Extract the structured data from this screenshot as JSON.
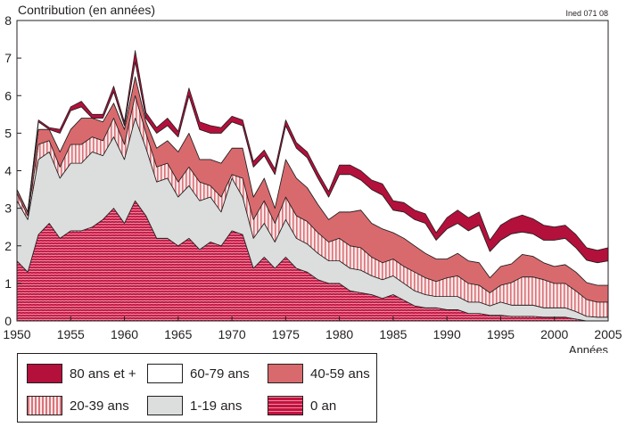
{
  "chart_data": {
    "type": "area",
    "stacked": true,
    "ylabel": "Contribution (en années)",
    "xlabel": "Années",
    "source_note": "Ined 071 08",
    "xlim": [
      1950,
      2005
    ],
    "ylim": [
      0,
      8
    ],
    "x_ticks": [
      1950,
      1955,
      1960,
      1965,
      1970,
      1975,
      1980,
      1985,
      1990,
      1995,
      2000,
      2005
    ],
    "y_ticks": [
      0,
      1,
      2,
      3,
      4,
      5,
      6,
      7,
      8
    ],
    "colors": {
      "0an": "#c4123f",
      "1-19": "#dcdddd",
      "20-39": "#d9737a",
      "40-59": "#d86a6e",
      "60-79": "#ffffff",
      "80plus": "#b4103c"
    },
    "x": [
      1950,
      1951,
      1952,
      1953,
      1954,
      1955,
      1956,
      1957,
      1958,
      1959,
      1960,
      1961,
      1962,
      1963,
      1964,
      1965,
      1966,
      1967,
      1968,
      1969,
      1970,
      1971,
      1972,
      1973,
      1974,
      1975,
      1976,
      1977,
      1978,
      1979,
      1980,
      1981,
      1982,
      1983,
      1984,
      1985,
      1986,
      1987,
      1988,
      1989,
      1990,
      1991,
      1992,
      1993,
      1994,
      1995,
      1996,
      1997,
      1998,
      1999,
      2000,
      2001,
      2002,
      2003,
      2004,
      2005
    ],
    "series": [
      {
        "name": "0 an",
        "key": "0an",
        "values": [
          1.6,
          1.3,
          2.3,
          2.6,
          2.2,
          2.4,
          2.4,
          2.5,
          2.7,
          3.0,
          2.6,
          3.2,
          2.8,
          2.2,
          2.2,
          2.0,
          2.2,
          1.9,
          2.1,
          2.0,
          2.4,
          2.3,
          1.4,
          1.7,
          1.4,
          1.7,
          1.4,
          1.3,
          1.1,
          1.0,
          1.0,
          0.8,
          0.75,
          0.7,
          0.6,
          0.7,
          0.55,
          0.4,
          0.35,
          0.35,
          0.3,
          0.3,
          0.2,
          0.2,
          0.15,
          0.15,
          0.12,
          0.12,
          0.12,
          0.1,
          0.1,
          0.1,
          0.05,
          0.0,
          0.0,
          0.0
        ]
      },
      {
        "name": "1-19 ans",
        "key": "1-19",
        "values": [
          1.6,
          1.4,
          2.0,
          1.9,
          1.6,
          1.8,
          1.8,
          2.0,
          1.7,
          1.9,
          1.7,
          2.2,
          1.8,
          1.5,
          1.6,
          1.3,
          1.4,
          1.3,
          1.2,
          0.9,
          1.4,
          1.0,
          0.8,
          0.9,
          0.7,
          1.0,
          0.8,
          0.75,
          0.7,
          0.6,
          0.6,
          0.6,
          0.6,
          0.5,
          0.5,
          0.5,
          0.45,
          0.4,
          0.35,
          0.3,
          0.35,
          0.35,
          0.3,
          0.3,
          0.25,
          0.35,
          0.3,
          0.3,
          0.3,
          0.25,
          0.25,
          0.25,
          0.2,
          0.12,
          0.1,
          0.1
        ]
      },
      {
        "name": "20-39 ans",
        "key": "20-39",
        "values": [
          0.2,
          0.1,
          0.4,
          0.3,
          0.3,
          0.5,
          0.5,
          0.4,
          0.4,
          0.5,
          0.4,
          0.6,
          0.4,
          0.4,
          0.4,
          0.4,
          0.5,
          0.5,
          0.3,
          0.4,
          0.1,
          0.5,
          0.5,
          0.6,
          0.5,
          0.6,
          0.6,
          0.6,
          0.55,
          0.5,
          0.6,
          0.6,
          0.6,
          0.5,
          0.45,
          0.45,
          0.45,
          0.5,
          0.45,
          0.4,
          0.5,
          0.55,
          0.5,
          0.45,
          0.35,
          0.45,
          0.6,
          0.75,
          0.75,
          0.75,
          0.65,
          0.65,
          0.55,
          0.45,
          0.4,
          0.4
        ]
      },
      {
        "name": "40-59 ans",
        "key": "40-59",
        "values": [
          0.1,
          0.1,
          0.4,
          0.3,
          0.4,
          0.4,
          0.7,
          0.5,
          0.5,
          0.4,
          0.4,
          0.5,
          0.3,
          0.5,
          0.6,
          0.8,
          0.9,
          0.6,
          0.7,
          0.9,
          0.7,
          0.8,
          0.6,
          0.6,
          0.4,
          1.0,
          1.0,
          0.9,
          0.75,
          0.6,
          0.7,
          0.9,
          1.0,
          0.9,
          0.9,
          0.7,
          0.75,
          0.7,
          0.65,
          0.6,
          0.5,
          0.6,
          0.6,
          0.6,
          0.4,
          0.5,
          0.5,
          0.6,
          0.55,
          0.45,
          0.45,
          0.5,
          0.5,
          0.45,
          0.45,
          0.45
        ]
      },
      {
        "name": "60-79 ans",
        "key": "60-79",
        "values": [
          0.0,
          0.0,
          0.2,
          0.0,
          0.5,
          0.5,
          0.3,
          0.0,
          0.1,
          0.3,
          0.1,
          0.4,
          0.1,
          0.4,
          0.4,
          0.4,
          1.0,
          0.8,
          0.7,
          0.8,
          0.7,
          0.6,
          0.8,
          0.6,
          0.9,
          0.9,
          0.8,
          0.8,
          0.7,
          0.6,
          1.0,
          1.0,
          0.8,
          0.9,
          0.9,
          0.6,
          0.7,
          0.7,
          0.8,
          0.5,
          0.8,
          0.8,
          0.8,
          1.0,
          0.7,
          0.7,
          0.8,
          0.6,
          0.6,
          0.6,
          0.7,
          0.7,
          0.65,
          0.6,
          0.6,
          0.65
        ]
      },
      {
        "name": "80 ans et +",
        "key": "80plus",
        "values": [
          0.0,
          0.0,
          0.05,
          0.05,
          0.1,
          0.1,
          0.15,
          0.1,
          0.1,
          0.15,
          0.1,
          0.3,
          0.15,
          0.15,
          0.2,
          0.15,
          0.2,
          0.2,
          0.2,
          0.15,
          0.15,
          0.15,
          0.15,
          0.15,
          0.15,
          0.15,
          0.15,
          0.15,
          0.15,
          0.15,
          0.25,
          0.25,
          0.25,
          0.25,
          0.3,
          0.25,
          0.25,
          0.25,
          0.25,
          0.2,
          0.3,
          0.35,
          0.35,
          0.35,
          0.3,
          0.4,
          0.4,
          0.45,
          0.4,
          0.4,
          0.35,
          0.35,
          0.35,
          0.33,
          0.33,
          0.35
        ]
      }
    ],
    "legend": [
      {
        "key": "80plus",
        "label": "80 ans et +"
      },
      {
        "key": "60-79",
        "label": "60-79 ans"
      },
      {
        "key": "40-59",
        "label": "40-59 ans"
      },
      {
        "key": "20-39",
        "label": "20-39 ans"
      },
      {
        "key": "1-19",
        "label": "1-19 ans"
      },
      {
        "key": "0an",
        "label": "0 an"
      }
    ]
  }
}
